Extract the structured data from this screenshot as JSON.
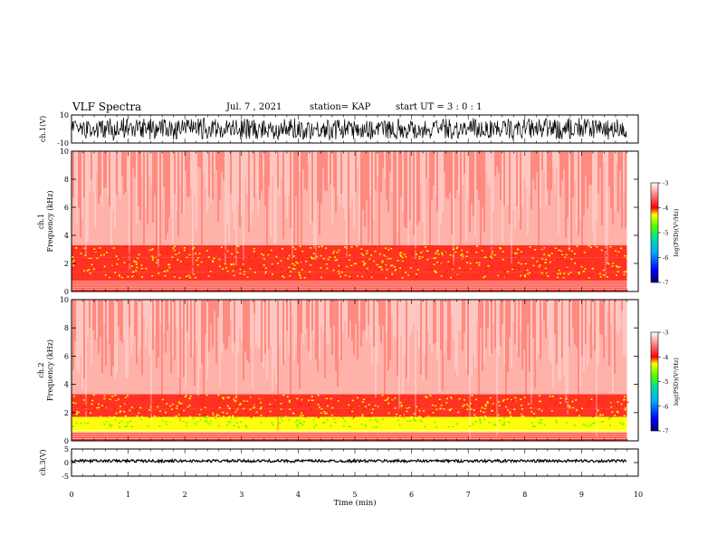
{
  "header": {
    "title": "VLF Spectra",
    "date": "Jul. 7 , 2021",
    "station": "station= KAP",
    "start": "start UT = 3 : 0 : 1"
  },
  "chart_data": [
    {
      "type": "line",
      "panel": "ch1-waveform",
      "ylabel": "ch.1(V)",
      "ylim": [
        -10,
        10
      ],
      "yticks": [
        "10",
        "-10"
      ],
      "x": [
        0,
        9.8
      ],
      "description_values": "dense noisy waveform spanning roughly -8 to +8 V over 0–9.8 min"
    },
    {
      "type": "heatmap",
      "panel": "ch1-spectrogram",
      "ylabel": "ch.1 Frequency (kHz)",
      "ylim": [
        0,
        10
      ],
      "yticks": [
        "0",
        "2",
        "4",
        "6",
        "8",
        "10"
      ],
      "xlim": [
        0,
        10
      ],
      "x_extent": 9.8,
      "bands": [
        {
          "from": 0.0,
          "to": 1.0,
          "level": -3.5
        },
        {
          "from": 1.0,
          "to": 1.4,
          "level": -3.9
        },
        {
          "from": 1.4,
          "to": 2.4,
          "level": -3.5
        },
        {
          "from": 2.4,
          "to": 3.3,
          "level": -3.9
        },
        {
          "from": 3.3,
          "to": 10.0,
          "level": -3.3
        }
      ],
      "colorbar": {
        "label": "log(PSD)(V²/Hz)",
        "min": -7,
        "max": -3,
        "ticks": [
          "-3",
          "-4",
          "-5",
          "-6",
          "-7"
        ]
      }
    },
    {
      "type": "heatmap",
      "panel": "ch2-spectrogram",
      "ylabel": "ch.2 Frequency (kHz)",
      "ylim": [
        0,
        10
      ],
      "yticks": [
        "0",
        "2",
        "4",
        "6",
        "8",
        "10"
      ],
      "xlim": [
        0,
        10
      ],
      "x_extent": 9.8,
      "bands": [
        {
          "from": 0.0,
          "to": 0.6,
          "level": -3.6
        },
        {
          "from": 0.6,
          "to": 1.7,
          "level": -4.6
        },
        {
          "from": 1.7,
          "to": 2.3,
          "level": -3.6
        },
        {
          "from": 2.3,
          "to": 3.3,
          "level": -4.0
        },
        {
          "from": 3.3,
          "to": 10.0,
          "level": -3.3
        }
      ],
      "colorbar": {
        "label": "log(PSD)(V²/Hz)",
        "min": -7,
        "max": -3,
        "ticks": [
          "-3",
          "-4",
          "-5",
          "-6",
          "-7"
        ]
      }
    },
    {
      "type": "line",
      "panel": "ch3-waveform",
      "ylabel": "ch.3(V)",
      "ylim": [
        -5,
        5
      ],
      "yticks": [
        "5",
        "0",
        "-5"
      ],
      "x": [
        0,
        9.8
      ],
      "description_values": "narrow band centered near 0.6 V, amplitude about ±0.5 V"
    }
  ],
  "xaxis": {
    "label": "Time (min)",
    "min": 0,
    "max": 10,
    "ticks": [
      "0",
      "1",
      "2",
      "3",
      "4",
      "5",
      "6",
      "7",
      "8",
      "9",
      "10"
    ]
  }
}
